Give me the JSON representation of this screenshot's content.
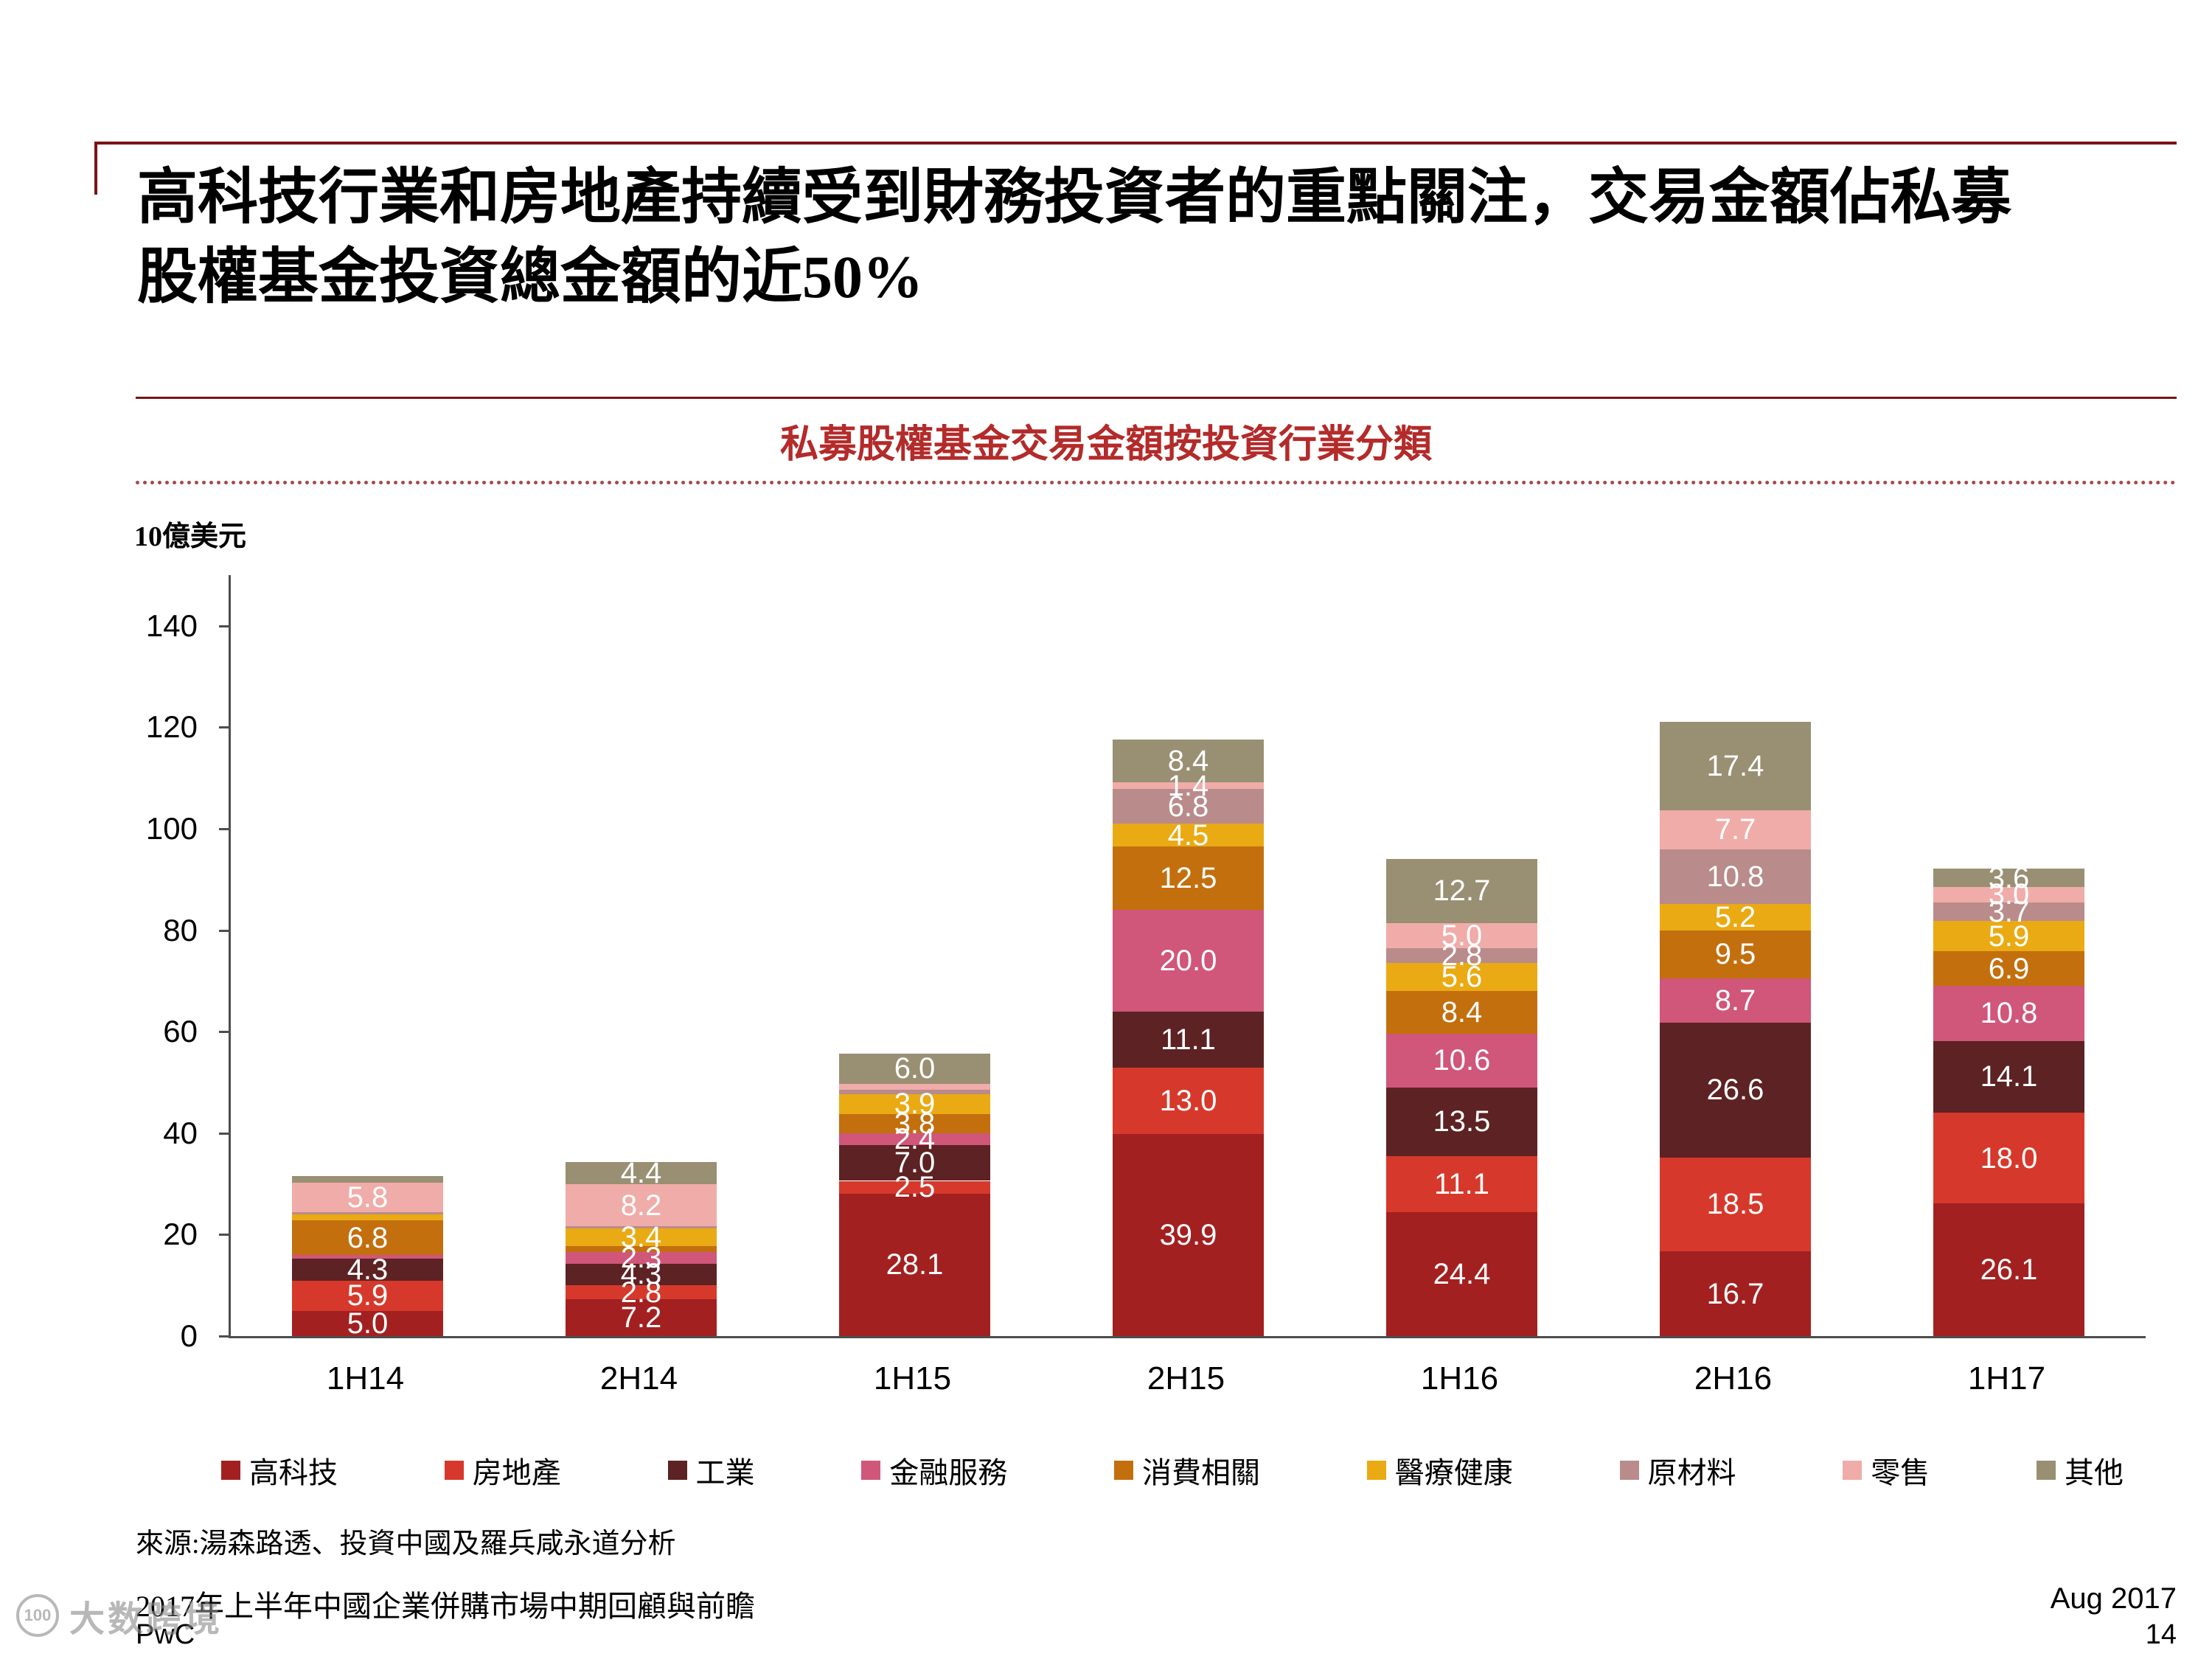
{
  "page": {
    "title_line1": "高科技行業和房地產持續受到財務投資者的重點關注，交易金額佔私募",
    "title_line2": "股權基金投資總金額的近50%",
    "unit_label": "10億美元",
    "source": "來源:湯森路透、投資中國及羅兵咸永道分析",
    "footer_left_line1": "2017年上半年中國企業併購市場中期回顧與前瞻",
    "footer_left_line2": "PwC",
    "footer_right_line1": "Aug 2017",
    "footer_right_line2": "14",
    "watermark_icon_text": "100",
    "watermark_text": "大数跨境"
  },
  "accent_colors": {
    "rule_dark_red": "#7A1315",
    "chart_title_red": "#B32B2A",
    "axis_gray": "#4d4d4d"
  },
  "chart_data": {
    "type": "bar",
    "stacked": true,
    "title": "私募股權基金交易金額按投資行業分類",
    "ylabel": "10億美元",
    "grid": false,
    "legend_position": "bottom",
    "categories": [
      "1H14",
      "2H14",
      "1H15",
      "2H15",
      "1H16",
      "2H16",
      "1H17"
    ],
    "y_ticks": [
      0,
      20,
      40,
      60,
      80,
      100,
      120,
      140
    ],
    "ylim": [
      0,
      150
    ],
    "label_min_value": 1.4,
    "series": [
      {
        "name": "高科技",
        "color": "#A32020",
        "values": [
          5.0,
          7.2,
          28.1,
          39.9,
          24.4,
          16.7,
          26.1
        ]
      },
      {
        "name": "房地產",
        "color": "#D6392B",
        "values": [
          5.9,
          2.8,
          2.5,
          13.0,
          11.1,
          18.5,
          18.0
        ]
      },
      {
        "name": "工業",
        "color": "#5D2223",
        "values": [
          4.3,
          4.3,
          7.0,
          11.1,
          13.5,
          26.6,
          14.1
        ]
      },
      {
        "name": "金融服務",
        "color": "#D0567A",
        "values": [
          0.8,
          2.3,
          2.4,
          20.0,
          10.6,
          8.7,
          10.8
        ]
      },
      {
        "name": "消費相關",
        "color": "#C36F0E",
        "values": [
          6.8,
          1.2,
          3.8,
          12.5,
          8.4,
          9.5,
          6.9
        ]
      },
      {
        "name": "醫療健康",
        "color": "#EAAA13",
        "values": [
          1.2,
          3.4,
          3.9,
          4.5,
          5.6,
          5.2,
          5.9
        ]
      },
      {
        "name": "原材料",
        "color": "#B98B8B",
        "values": [
          0.4,
          0.5,
          0.8,
          6.8,
          2.8,
          10.8,
          3.7
        ]
      },
      {
        "name": "零售",
        "color": "#F0ACA8",
        "values": [
          5.8,
          8.2,
          1.2,
          1.4,
          5.0,
          7.7,
          3.0
        ]
      },
      {
        "name": "其他",
        "color": "#998F73",
        "values": [
          1.3,
          4.4,
          6.0,
          8.4,
          12.7,
          17.4,
          3.6
        ]
      }
    ]
  }
}
